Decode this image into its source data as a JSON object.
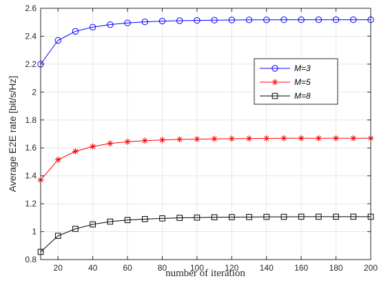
{
  "chart_data": {
    "type": "line",
    "xlabel": "number of iteration",
    "ylabel": "Average E2E rate [bit/s/Hz]",
    "xlim": [
      10,
      200
    ],
    "ylim": [
      0.8,
      2.6
    ],
    "xticks": [
      20,
      40,
      60,
      80,
      100,
      120,
      140,
      160,
      180,
      200
    ],
    "yticks": [
      0.8,
      1,
      1.2,
      1.4,
      1.6,
      1.8,
      2,
      2.2,
      2.4,
      2.6
    ],
    "ytick_labels": [
      "0.8",
      "1",
      "1.2",
      "1.4",
      "1.6",
      "1.8",
      "2",
      "2.2",
      "2.4",
      "2.6"
    ],
    "grid": true,
    "legend_position": "upper-right",
    "x": [
      10,
      20,
      30,
      40,
      50,
      60,
      70,
      80,
      90,
      100,
      110,
      120,
      130,
      140,
      150,
      160,
      170,
      180,
      190,
      200
    ],
    "series": [
      {
        "name": "M=3",
        "color": "#0000ff",
        "marker": "circle",
        "values": [
          2.2,
          2.37,
          2.435,
          2.465,
          2.483,
          2.495,
          2.503,
          2.508,
          2.511,
          2.513,
          2.515,
          2.516,
          2.517,
          2.517,
          2.518,
          2.518,
          2.518,
          2.518,
          2.518,
          2.518
        ]
      },
      {
        "name": "M=5",
        "color": "#ff0000",
        "marker": "star",
        "values": [
          1.37,
          1.515,
          1.575,
          1.61,
          1.632,
          1.644,
          1.652,
          1.657,
          1.661,
          1.663,
          1.665,
          1.666,
          1.667,
          1.668,
          1.669,
          1.669,
          1.669,
          1.669,
          1.669,
          1.669
        ]
      },
      {
        "name": "M=8",
        "color": "#000000",
        "marker": "square",
        "values": [
          0.855,
          0.97,
          1.02,
          1.052,
          1.072,
          1.083,
          1.09,
          1.095,
          1.099,
          1.101,
          1.103,
          1.104,
          1.105,
          1.106,
          1.106,
          1.107,
          1.107,
          1.107,
          1.107,
          1.107
        ]
      }
    ]
  }
}
